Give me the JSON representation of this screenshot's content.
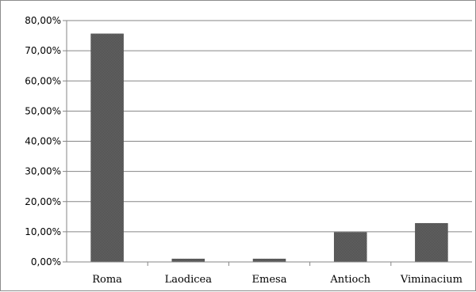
{
  "chart_data": {
    "type": "bar",
    "title": "",
    "xlabel": "",
    "ylabel": "",
    "categories": [
      "Roma",
      "Laodicea",
      "Emesa",
      "Antioch",
      "Viminacium"
    ],
    "values": [
      75.6,
      1.0,
      1.0,
      9.8,
      12.8
    ],
    "ylim": [
      0,
      80
    ],
    "y_ticks": [
      "0,00%",
      "10,00%",
      "20,00%",
      "30,00%",
      "40,00%",
      "50,00%",
      "60,00%",
      "70,00%",
      "80,00%"
    ],
    "grid": true,
    "legend": "none",
    "bar_color": "#5f5f5f",
    "gridline_color": "#868686"
  }
}
